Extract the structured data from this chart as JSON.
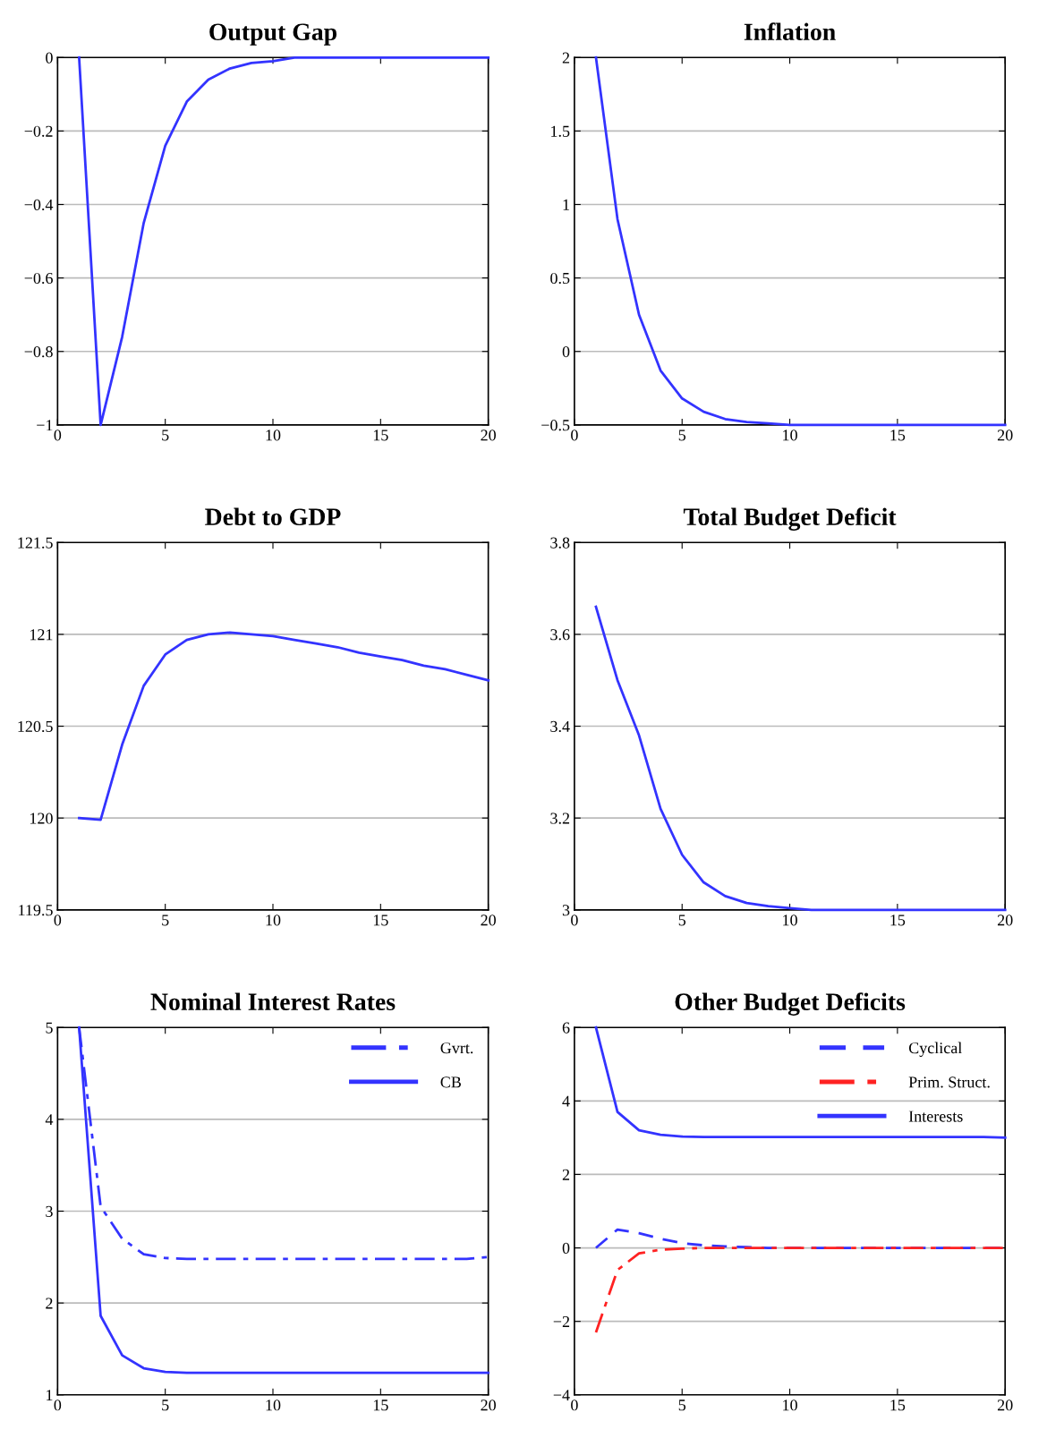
{
  "chart_data": [
    {
      "type": "line",
      "title": "Output Gap",
      "x": [
        1,
        2,
        3,
        4,
        5,
        6,
        7,
        8,
        9,
        10,
        11,
        12,
        13,
        14,
        15,
        16,
        17,
        18,
        19,
        20
      ],
      "series": [
        {
          "color": "#3333ff",
          "values": [
            0,
            -1.0,
            -0.76,
            -0.45,
            -0.24,
            -0.12,
            -0.06,
            -0.03,
            -0.015,
            -0.01,
            0,
            0,
            0,
            0,
            0,
            0,
            0,
            0,
            0,
            0
          ]
        }
      ],
      "xlim": [
        0,
        20
      ],
      "xticks": [
        0,
        5,
        10,
        15,
        20
      ],
      "ylim": [
        -1,
        0
      ],
      "yticks": [
        {
          "value": -1,
          "label": "−1"
        },
        {
          "value": -0.8,
          "label": "−0.8"
        },
        {
          "value": -0.6,
          "label": "−0.6"
        },
        {
          "value": -0.4,
          "label": "−0.4"
        },
        {
          "value": -0.2,
          "label": "−0.2"
        },
        0
      ],
      "grid": "y",
      "legend": false
    },
    {
      "type": "line",
      "title": "Inflation",
      "x": [
        1,
        2,
        3,
        4,
        5,
        6,
        7,
        8,
        9,
        10,
        11,
        12,
        13,
        14,
        15,
        16,
        17,
        18,
        19,
        20
      ],
      "series": [
        {
          "color": "#3333ff",
          "values": [
            2.0,
            0.9,
            0.25,
            -0.13,
            -0.32,
            -0.41,
            -0.46,
            -0.48,
            -0.49,
            -0.5,
            -0.5,
            -0.5,
            -0.5,
            -0.5,
            -0.5,
            -0.5,
            -0.5,
            -0.5,
            -0.5,
            -0.5
          ]
        }
      ],
      "xlim": [
        0,
        20
      ],
      "xticks": [
        0,
        5,
        10,
        15,
        20
      ],
      "ylim": [
        -0.5,
        2
      ],
      "yticks": [
        {
          "value": -0.5,
          "label": "−0.5"
        },
        0,
        0.5,
        1,
        1.5,
        2
      ],
      "grid": "y",
      "legend": false
    },
    {
      "type": "line",
      "title": "Debt to GDP",
      "x": [
        1,
        2,
        3,
        4,
        5,
        6,
        7,
        8,
        9,
        10,
        11,
        12,
        13,
        14,
        15,
        16,
        17,
        18,
        19,
        20
      ],
      "series": [
        {
          "color": "#3333ff",
          "values": [
            120.0,
            119.99,
            120.4,
            120.72,
            120.89,
            120.97,
            121.0,
            121.01,
            121.0,
            120.99,
            120.97,
            120.95,
            120.93,
            120.9,
            120.88,
            120.86,
            120.83,
            120.81,
            120.78,
            120.75
          ]
        }
      ],
      "xlim": [
        0,
        20
      ],
      "xticks": [
        0,
        5,
        10,
        15,
        20
      ],
      "ylim": [
        119.5,
        121.5
      ],
      "yticks": [
        119.5,
        120,
        120.5,
        121,
        121.5
      ],
      "grid": "y",
      "legend": false
    },
    {
      "type": "line",
      "title": "Total Budget Deficit",
      "x": [
        1,
        2,
        3,
        4,
        5,
        6,
        7,
        8,
        9,
        10,
        11,
        12,
        13,
        14,
        15,
        16,
        17,
        18,
        19,
        20
      ],
      "series": [
        {
          "color": "#3333ff",
          "values": [
            3.66,
            3.5,
            3.38,
            3.22,
            3.12,
            3.06,
            3.03,
            3.015,
            3.008,
            3.004,
            3.0,
            3.0,
            3.0,
            3.0,
            3.0,
            3.0,
            3.0,
            3.0,
            3.0,
            3.0
          ]
        }
      ],
      "xlim": [
        0,
        20
      ],
      "xticks": [
        0,
        5,
        10,
        15,
        20
      ],
      "ylim": [
        3,
        3.8
      ],
      "yticks": [
        3,
        3.2,
        3.4,
        3.6,
        3.8
      ],
      "grid": "y",
      "legend": false
    },
    {
      "type": "line",
      "title": "Nominal Interest Rates",
      "x": [
        1,
        2,
        3,
        4,
        5,
        6,
        7,
        8,
        9,
        10,
        11,
        12,
        13,
        14,
        15,
        16,
        17,
        18,
        19,
        20
      ],
      "series": [
        {
          "name": "Gvrt.",
          "color": "#3333ff",
          "line_style": "dashdot",
          "values": [
            5.0,
            3.05,
            2.7,
            2.53,
            2.49,
            2.48,
            2.48,
            2.48,
            2.48,
            2.48,
            2.48,
            2.48,
            2.48,
            2.48,
            2.48,
            2.48,
            2.48,
            2.48,
            2.48,
            2.5
          ]
        },
        {
          "name": "CB",
          "color": "#3333ff",
          "line_style": "solid",
          "values": [
            5.0,
            1.86,
            1.43,
            1.29,
            1.25,
            1.24,
            1.24,
            1.24,
            1.24,
            1.24,
            1.24,
            1.24,
            1.24,
            1.24,
            1.24,
            1.24,
            1.24,
            1.24,
            1.24,
            1.24
          ]
        }
      ],
      "xlim": [
        0,
        20
      ],
      "xticks": [
        0,
        5,
        10,
        15,
        20
      ],
      "ylim": [
        1,
        5
      ],
      "yticks": [
        1,
        2,
        3,
        4,
        5
      ],
      "grid": "y",
      "legend": "top right"
    },
    {
      "type": "line",
      "title": "Other Budget Deficits",
      "x": [
        1,
        2,
        3,
        4,
        5,
        6,
        7,
        8,
        9,
        10,
        11,
        12,
        13,
        14,
        15,
        16,
        17,
        18,
        19,
        20
      ],
      "series": [
        {
          "name": "Cyclical",
          "color": "#3333ff",
          "line_style": "dashed",
          "values": [
            0.0,
            0.5,
            0.4,
            0.25,
            0.13,
            0.07,
            0.04,
            0.02,
            0,
            0,
            0,
            0,
            0,
            0,
            0,
            0,
            0,
            0,
            0,
            0
          ]
        },
        {
          "name": "Prim. Struct.",
          "color": "#ff2222",
          "line_style": "dashdot",
          "values": [
            -2.3,
            -0.6,
            -0.15,
            -0.05,
            -0.02,
            0,
            0,
            0,
            0,
            0,
            0,
            0,
            0,
            0,
            0,
            0,
            0,
            0,
            0,
            0
          ]
        },
        {
          "name": "Interests",
          "color": "#3333ff",
          "line_style": "solid",
          "values": [
            6.0,
            3.7,
            3.2,
            3.08,
            3.03,
            3.02,
            3.02,
            3.02,
            3.02,
            3.02,
            3.02,
            3.02,
            3.02,
            3.02,
            3.02,
            3.02,
            3.02,
            3.02,
            3.02,
            3.0
          ]
        }
      ],
      "xlim": [
        0,
        20
      ],
      "xticks": [
        0,
        5,
        10,
        15,
        20
      ],
      "ylim": [
        -4,
        6
      ],
      "yticks": [
        {
          "value": -4,
          "label": "−4"
        },
        {
          "value": -2,
          "label": "−2"
        },
        0,
        2,
        4,
        6
      ],
      "grid": "y",
      "legend": "top right"
    }
  ]
}
